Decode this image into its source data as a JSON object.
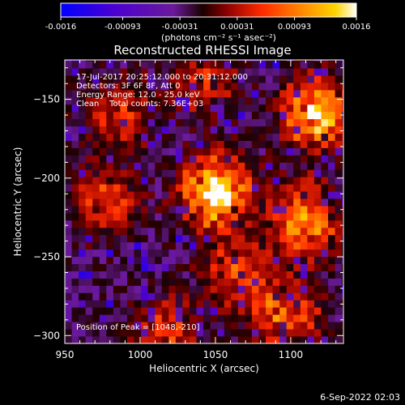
{
  "chart_data": {
    "type": "heatmap",
    "title": "Reconstructed RHESSI Image",
    "xlabel": "Heliocentric X (arcsec)",
    "ylabel": "Heliocentric Y (arcsec)",
    "xlim": [
      950,
      1135
    ],
    "ylim": [
      -305,
      -125
    ],
    "x_ticks": [
      950,
      1000,
      1050,
      1100
    ],
    "x_tick_labels": [
      "950",
      "1000",
      "1050",
      "1100"
    ],
    "y_ticks": [
      -150,
      -200,
      -250,
      -300
    ],
    "y_tick_labels": [
      "-150",
      "-200",
      "-250",
      "-300"
    ],
    "colorbar": {
      "range": [
        -0.0016,
        0.0016
      ],
      "ticks": [
        -0.0016,
        -0.00093,
        -0.00031,
        0.00031,
        0.00093,
        0.0016
      ],
      "tick_labels": [
        "-0.0016",
        "-0.00093",
        "-0.00031",
        "0.00031",
        "0.00093",
        "0.0016"
      ],
      "unit_label": "(photons cm⁻² s⁻¹ asec⁻²)",
      "colormap": [
        "#0000ff",
        "#5a00d0",
        "#8a2be2",
        "#7a0000",
        "#ff2000",
        "#ff8c00",
        "#ffd000",
        "#ffffff"
      ]
    },
    "annotations": [
      "17-Jul-2017 20:25:12.000 to 20:31:12.000",
      "Detectors: 3F 6F 8F, Att 0",
      "Energy Range: 12.0 - 25.0 keV",
      "Clean    Total counts: 7.36E+03"
    ],
    "peak_label": "Position of Peak = [1048,-210]",
    "peak_position": [
      1048,
      -210
    ],
    "bright_regions": [
      {
        "x": 1048,
        "y": -210,
        "intensity": 1.0
      },
      {
        "x": 1115,
        "y": -162,
        "intensity": 0.85
      },
      {
        "x": 1108,
        "y": -230,
        "intensity": 0.75
      },
      {
        "x": 1060,
        "y": -262,
        "intensity": 0.45
      },
      {
        "x": 1095,
        "y": -290,
        "intensity": 0.6
      },
      {
        "x": 975,
        "y": -215,
        "intensity": 0.45
      },
      {
        "x": 985,
        "y": -160,
        "intensity": 0.4
      },
      {
        "x": 1015,
        "y": -300,
        "intensity": 0.45
      },
      {
        "x": 1040,
        "y": -140,
        "intensity": 0.35
      }
    ]
  },
  "footer": {
    "date": "6-Sep-2022 02:03"
  }
}
